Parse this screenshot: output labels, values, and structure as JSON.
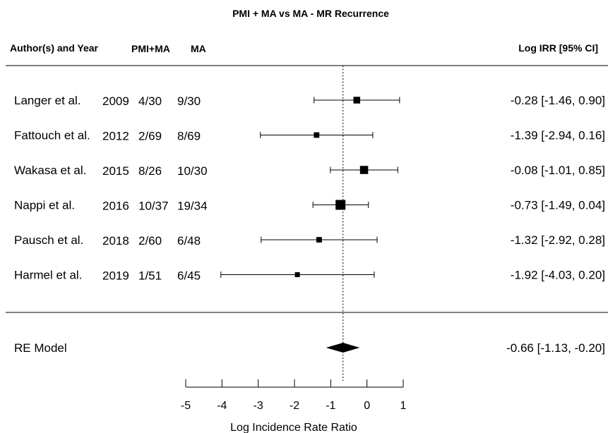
{
  "chart_data": {
    "type": "forest",
    "title": "PMI + MA vs MA - MR Recurrence",
    "xlabel": "Log Incidence Rate Ratio",
    "columns": {
      "author_year": "Author(s) and Year",
      "group1": "PMI+MA",
      "group2": "MA",
      "estimate": "Log IRR [95% CI]"
    },
    "xlim": [
      -5,
      1
    ],
    "xticks": [
      "-5",
      "-4",
      "-3",
      "-2",
      "-1",
      "0",
      "1"
    ],
    "reference_line": -0.66,
    "studies": [
      {
        "author": "Langer et al.",
        "year": "2009",
        "g1": "4/30",
        "g2": "9/30",
        "est": -0.28,
        "lo": -1.46,
        "hi": 0.9,
        "weight": 0.55,
        "label": "-0.28 [-1.46,  0.90]"
      },
      {
        "author": "Fattouch et al.",
        "year": "2012",
        "g1": "2/69",
        "g2": "8/69",
        "est": -1.39,
        "lo": -2.94,
        "hi": 0.16,
        "weight": 0.38,
        "label": "-1.39 [-2.94,  0.16]"
      },
      {
        "author": "Wakasa et al.",
        "year": "2015",
        "g1": "8/26",
        "g2": "10/30",
        "est": -0.08,
        "lo": -1.01,
        "hi": 0.85,
        "weight": 0.75,
        "label": "-0.08 [-1.01,  0.85]"
      },
      {
        "author": "Nappi et al.",
        "year": "2016",
        "g1": "10/37",
        "g2": "19/34",
        "est": -0.73,
        "lo": -1.49,
        "hi": 0.04,
        "weight": 1.0,
        "label": "-0.73 [-1.49,  0.04]"
      },
      {
        "author": "Pausch et al.",
        "year": "2018",
        "g1": "2/60",
        "g2": "6/48",
        "est": -1.32,
        "lo": -2.92,
        "hi": 0.28,
        "weight": 0.38,
        "label": "-1.32 [-2.92,  0.28]"
      },
      {
        "author": "Harmel et al.",
        "year": "2019",
        "g1": "1/51",
        "g2": "6/45",
        "est": -1.92,
        "lo": -4.03,
        "hi": 0.2,
        "weight": 0.3,
        "label": "-1.92 [-4.03,  0.20]"
      }
    ],
    "summary": {
      "label": "RE Model",
      "est": -0.66,
      "lo": -1.13,
      "hi": -0.2,
      "text": "-0.66 [-1.13, -0.20]"
    }
  }
}
